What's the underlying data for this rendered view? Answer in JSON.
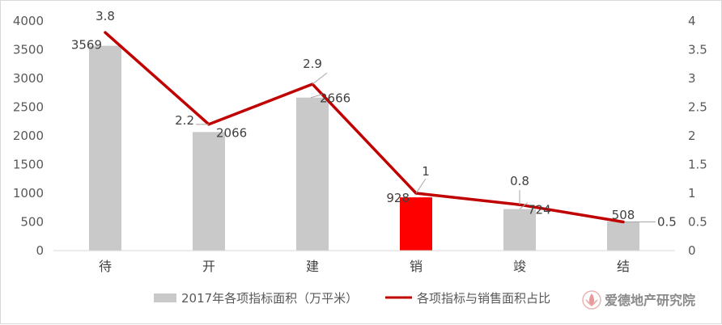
{
  "chart_data": {
    "type": "bar+line",
    "title": "",
    "categories": [
      "待",
      "开",
      "建",
      "销",
      "竣",
      "结"
    ],
    "series": [
      {
        "name": "2017年各项指标面积（万平米）",
        "type": "bar",
        "axis": "left",
        "values": [
          3569,
          2066,
          2666,
          928,
          724,
          508
        ],
        "color": "#c9c9c9",
        "highlight_index": 3,
        "highlight_color": "#ff0000"
      },
      {
        "name": "各项指标与销售面积占比",
        "type": "line",
        "axis": "right",
        "values": [
          3.8,
          2.2,
          2.9,
          1,
          0.8,
          0.5
        ],
        "color": "#c00000"
      }
    ],
    "y_left": {
      "min": 0,
      "max": 4000,
      "step": 500,
      "ticks": [
        "0",
        "500",
        "1000",
        "1500",
        "2000",
        "2500",
        "3000",
        "3500",
        "4000"
      ]
    },
    "y_right": {
      "min": 0,
      "max": 4,
      "step": 0.5,
      "ticks": [
        "0",
        "0.5",
        "1",
        "1.5",
        "2",
        "2.5",
        "3",
        "3.5",
        "4"
      ]
    },
    "bar_labels": [
      "3569",
      "2066",
      "2666",
      "928",
      "724",
      "508"
    ],
    "line_labels": [
      "3.8",
      "2.2",
      "2.9",
      "1",
      "0.8",
      "0.5"
    ],
    "grid": false,
    "legend_position": "bottom"
  },
  "watermark": {
    "text": "爱德地产研究院",
    "icon": "lotus-logo-icon"
  }
}
